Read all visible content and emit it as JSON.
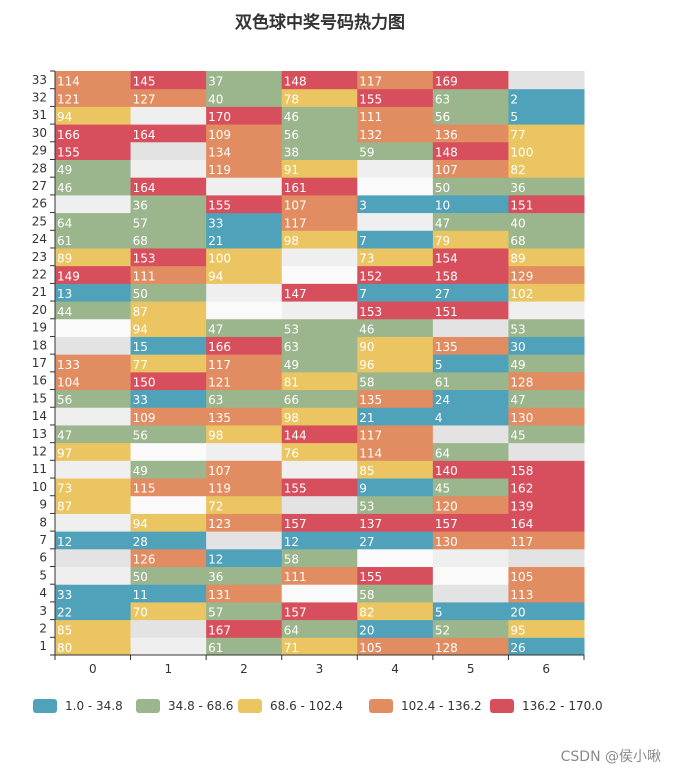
{
  "title": "双色球中奖号码热力图",
  "watermark": "CSDN @侯小啾",
  "chart_data": {
    "type": "heatmap",
    "x_categories": [
      "0",
      "1",
      "2",
      "3",
      "4",
      "5",
      "6"
    ],
    "y_categories": [
      "1",
      "2",
      "3",
      "4",
      "5",
      "6",
      "7",
      "8",
      "9",
      "10",
      "11",
      "12",
      "13",
      "14",
      "15",
      "16",
      "17",
      "18",
      "19",
      "20",
      "21",
      "22",
      "23",
      "24",
      "25",
      "26",
      "27",
      "28",
      "29",
      "30",
      "31",
      "32",
      "33"
    ],
    "columns": [
      [
        80,
        85,
        22,
        33,
        null,
        null,
        12,
        null,
        87,
        73,
        null,
        97,
        47,
        null,
        56,
        104,
        133,
        null,
        null,
        44,
        13,
        149,
        89,
        61,
        64,
        null,
        46,
        49,
        155,
        166,
        94,
        121,
        114
      ],
      [
        null,
        null,
        70,
        11,
        50,
        126,
        28,
        94,
        null,
        115,
        49,
        null,
        56,
        109,
        33,
        150,
        77,
        15,
        94,
        87,
        50,
        111,
        153,
        68,
        57,
        36,
        164,
        null,
        null,
        164,
        null,
        127,
        145
      ],
      [
        61,
        167,
        57,
        131,
        36,
        12,
        null,
        123,
        72,
        119,
        107,
        null,
        98,
        135,
        63,
        121,
        117,
        166,
        47,
        null,
        null,
        94,
        100,
        21,
        33,
        155,
        null,
        119,
        134,
        109,
        170,
        40,
        37
      ],
      [
        71,
        64,
        157,
        null,
        111,
        58,
        12,
        157,
        null,
        155,
        null,
        76,
        144,
        98,
        66,
        81,
        49,
        63,
        53,
        null,
        147,
        null,
        null,
        98,
        117,
        107,
        161,
        91,
        38,
        56,
        46,
        78,
        148
      ],
      [
        105,
        20,
        82,
        58,
        155,
        null,
        27,
        137,
        53,
        9,
        85,
        114,
        117,
        21,
        135,
        58,
        96,
        90,
        46,
        153,
        7,
        152,
        73,
        7,
        null,
        3,
        null,
        null,
        59,
        132,
        111,
        155,
        117
      ],
      [
        128,
        52,
        5,
        null,
        null,
        null,
        130,
        157,
        120,
        45,
        140,
        64,
        null,
        4,
        24,
        61,
        5,
        135,
        null,
        151,
        27,
        158,
        154,
        79,
        47,
        10,
        50,
        107,
        148,
        136,
        56,
        63,
        169
      ],
      [
        26,
        95,
        20,
        113,
        105,
        null,
        117,
        164,
        139,
        162,
        158,
        null,
        45,
        130,
        47,
        128,
        49,
        30,
        53,
        null,
        102,
        129,
        89,
        68,
        40,
        151,
        36,
        82,
        100,
        77,
        5,
        2,
        null
      ]
    ],
    "visual_map": {
      "type": "piecewise",
      "min": 1.0,
      "max": 170.0,
      "pieces": [
        {
          "label": "1.0 - 34.8",
          "min": 1.0,
          "max": 34.8,
          "color": "#4fa2ba"
        },
        {
          "label": "34.8 - 68.6",
          "min": 34.8,
          "max": 68.6,
          "color": "#9bb58c"
        },
        {
          "label": "68.6 - 102.4",
          "min": 68.6,
          "max": 102.4,
          "color": "#ebc562"
        },
        {
          "label": "102.4 - 136.2",
          "min": 102.4,
          "max": 136.2,
          "color": "#e28c62"
        },
        {
          "label": "136.2 - 170.0",
          "min": 136.2,
          "max": 170.0,
          "color": "#d74f5c"
        }
      ]
    },
    "empty_cell_colors": [
      "#fafafa",
      "#efefef",
      "#e3e3e3"
    ],
    "legend_position": "bottom"
  }
}
